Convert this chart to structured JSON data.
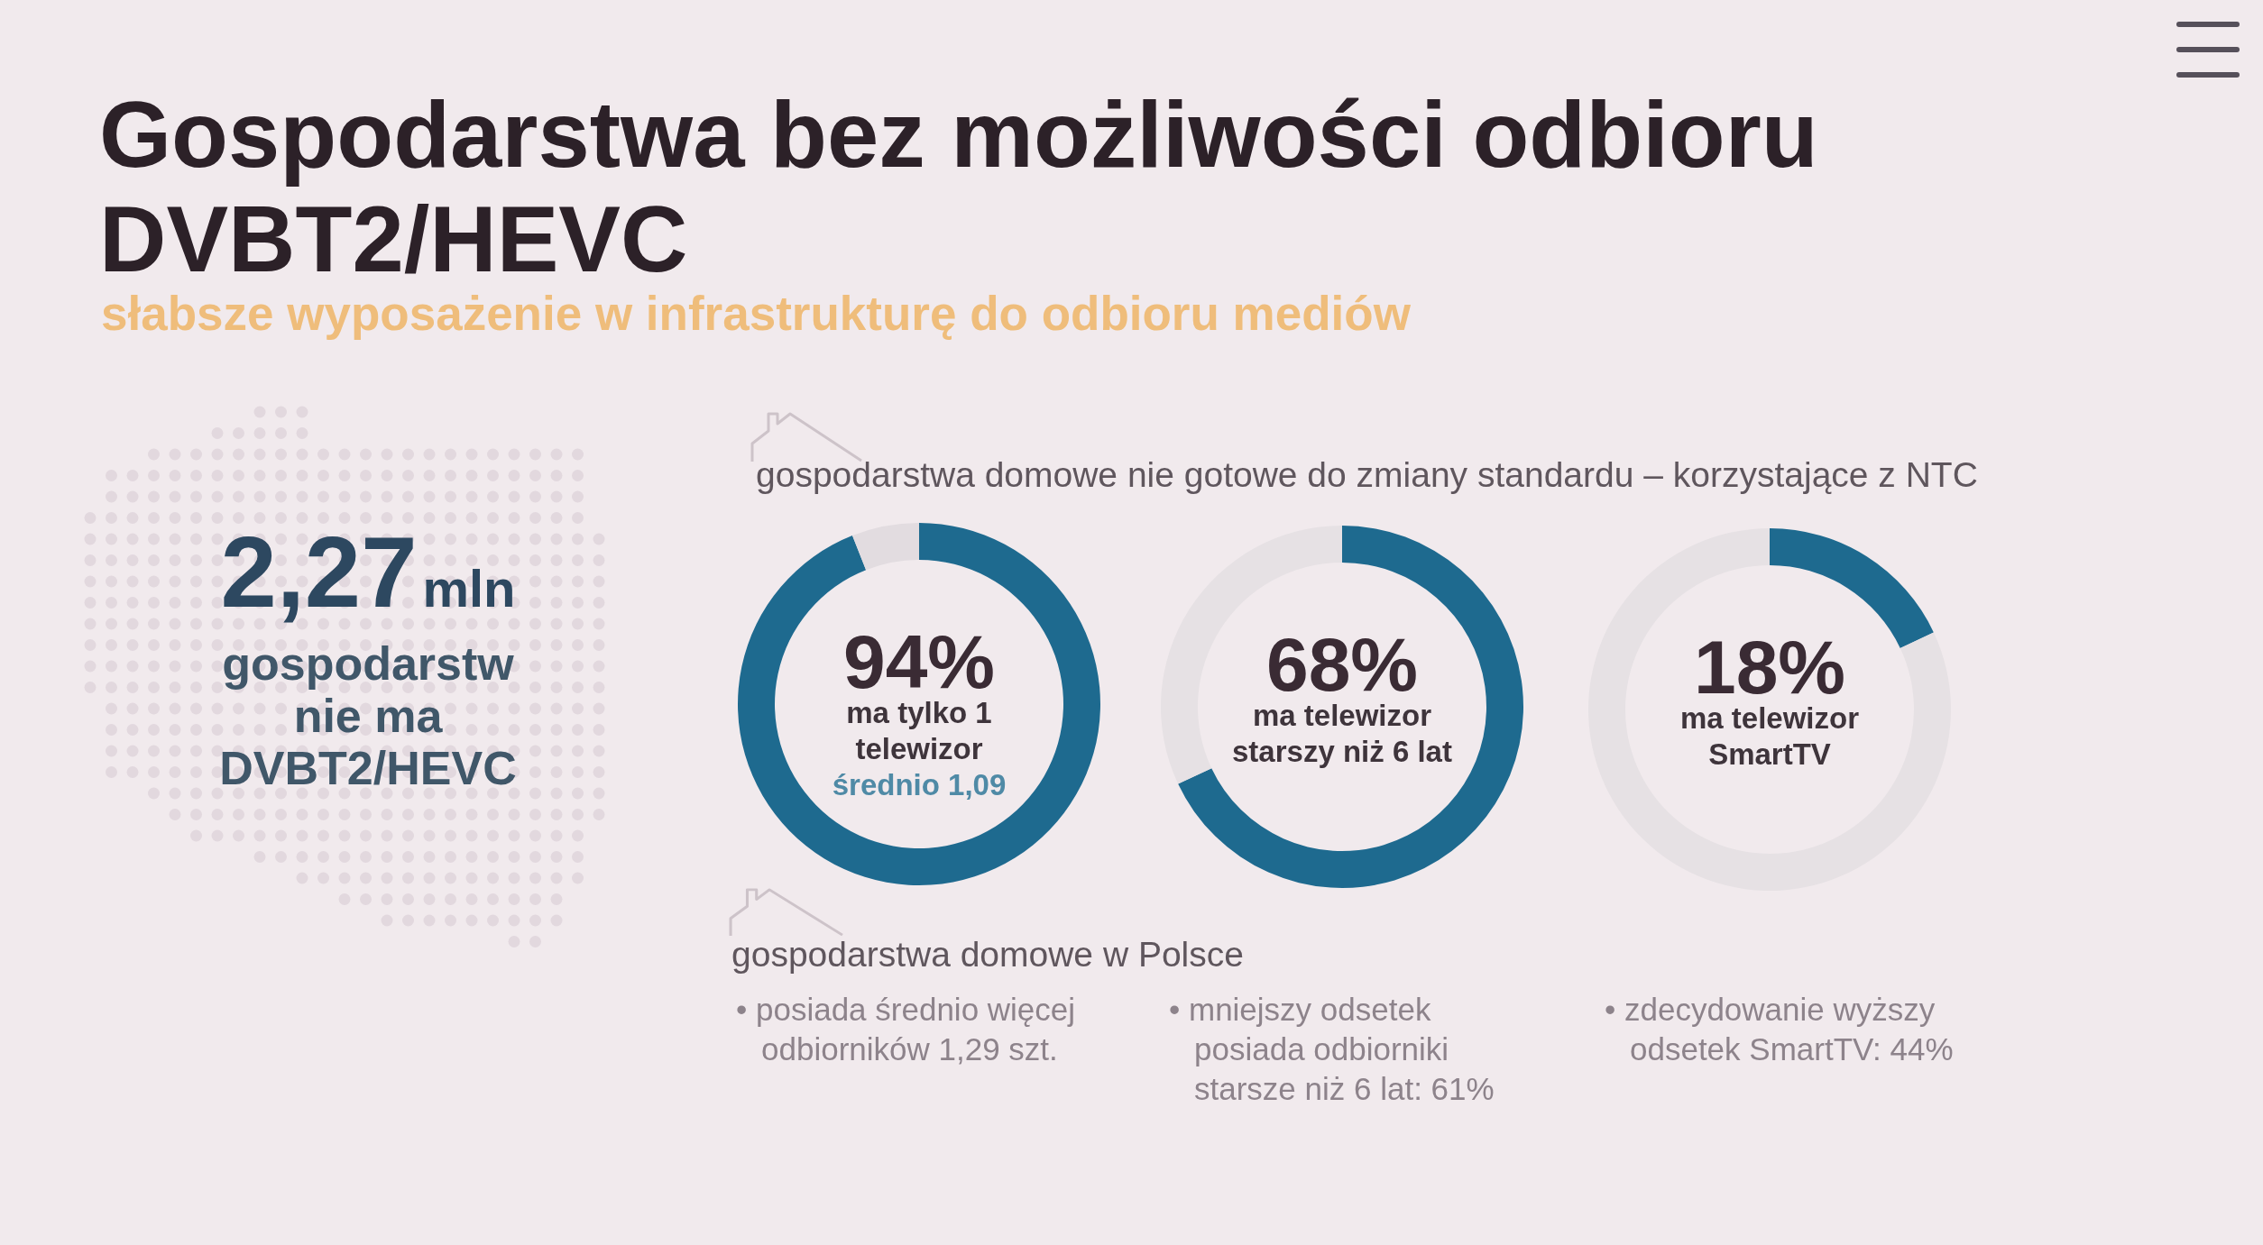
{
  "chart_data": [
    {
      "type": "other",
      "title": "Gospodarstwa bez możliwości odbioru DVBT2/HEVC",
      "subtitle": "słabsze wyposażenie w infrastrukturę do odbioru mediów"
    },
    {
      "type": "other",
      "annotations": [
        "2,27",
        "mln",
        "gospodarstw nie ma DVBT2/HEVC"
      ]
    },
    {
      "type": "other",
      "title": "gospodarstwa domowe nie gotowe do zmiany standardu – korzystające z NTC"
    },
    {
      "type": "donut",
      "categories": [
        null,
        null
      ],
      "values": [
        94,
        6
      ],
      "colors": [
        "#1e6a8f",
        "#e2dce0"
      ],
      "value_labels": [
        "94%",
        null
      ],
      "annotations": [
        "ma tylko 1 telewizor",
        "średnio 1,09"
      ]
    },
    {
      "type": "donut",
      "categories": [
        null,
        null
      ],
      "values": [
        68,
        32
      ],
      "colors": [
        "#1e6a8f",
        "#e6e1e4"
      ],
      "value_labels": [
        "68%",
        null
      ],
      "annotations": [
        "ma telewizor starszy niż 6 lat"
      ]
    },
    {
      "type": "donut",
      "categories": [
        null,
        null
      ],
      "values": [
        18,
        82
      ],
      "colors": [
        "#1e6a8f",
        "#e6e1e4"
      ],
      "value_labels": [
        "18%",
        null
      ],
      "annotations": [
        "ma telewizor SmartTV"
      ]
    },
    {
      "type": "other",
      "title": "gospodarstwa domowe w Polsce",
      "annotations": [
        "• posiada średnio więcej odbiorników 1,29 szt.",
        "• mniejszy odsetek posiada odbiorniki starsze niż 6 lat: 61%",
        "• zdecydowanie wyższy odsetek SmartTV: 44%"
      ]
    }
  ]
}
